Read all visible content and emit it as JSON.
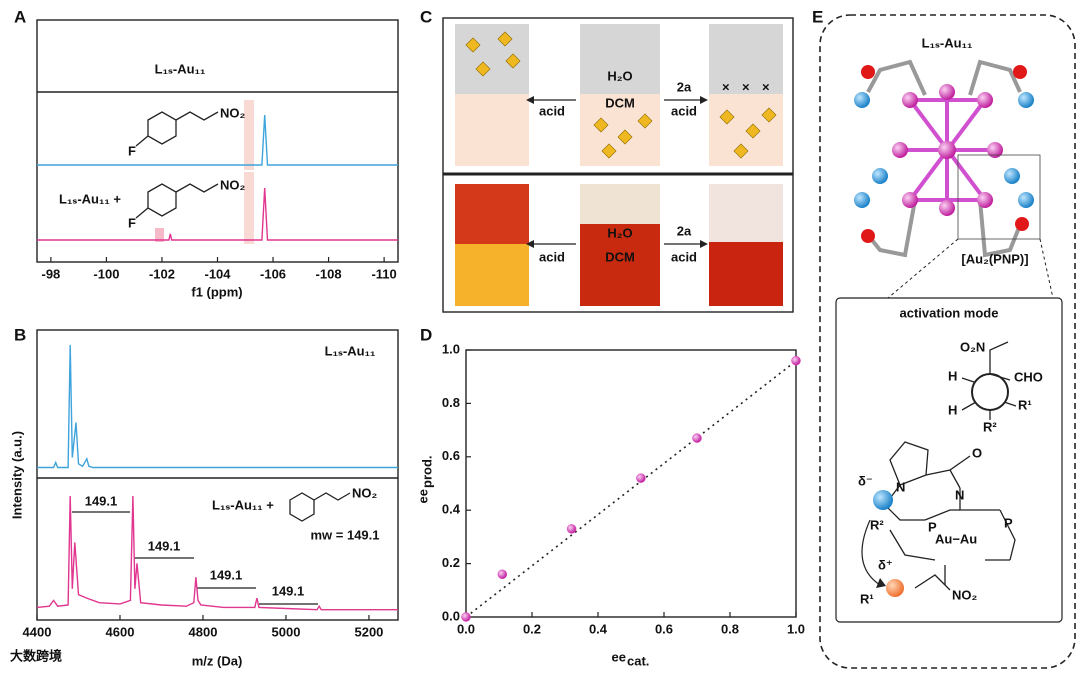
{
  "panel_labels": [
    "A",
    "B",
    "C",
    "D",
    "E"
  ],
  "chart_data": [
    {
      "type": "line",
      "xlabel": "f1 (ppm)",
      "xlim": [
        -97.5,
        -110.5
      ],
      "xticks": [
        -98,
        -100,
        -102,
        -104,
        -106,
        -108,
        -110
      ],
      "annotations": [
        "L₁ₛ-Au₁₁",
        "L₁ₛ-Au₁₁ +"
      ],
      "molecule_labels": [
        "NO₂",
        "F",
        "NO₂",
        "F"
      ],
      "series": [
        {
          "color": "#3fa4dc",
          "x": [
            -97.5,
            -105.6,
            -105.7,
            -105.8,
            -110.5
          ],
          "values": [
            0,
            0,
            1,
            0,
            0
          ]
        },
        {
          "color": "#e0368f",
          "x": [
            -97.5,
            -102.25,
            -102.3,
            -102.35,
            -105.6,
            -105.7,
            -105.8,
            -110.5
          ],
          "values": [
            0,
            0,
            0.12,
            0,
            0,
            1,
            0,
            0
          ]
        }
      ]
    },
    {
      "type": "line",
      "xlabel": "m/z (Da)",
      "ylabel": "Intensity (a.u.)",
      "xlim": [
        4400,
        5270
      ],
      "xticks": [
        4400,
        4600,
        4800,
        5000,
        5200
      ],
      "annotations": [
        "L₁ₛ-Au₁₁",
        "L₁ₛ-Au₁₁ +",
        "NO₂",
        "mw = 149.1"
      ],
      "spacing_labels": [
        "149.1",
        "149.1",
        "149.1",
        "149.1"
      ],
      "series": [
        {
          "color": "#3fa4dc",
          "x": [
            4400,
            4440,
            4445,
            4450,
            4475,
            4480,
            4485,
            4494,
            4500,
            4510,
            4520,
            4525,
            4535,
            5270
          ],
          "values": [
            0.02,
            0.02,
            0.06,
            0.02,
            0.02,
            1,
            0.1,
            0.38,
            0.05,
            0.03,
            0.09,
            0.03,
            0.02,
            0.02
          ]
        },
        {
          "color": "#e0368f",
          "x": [
            4400,
            4430,
            4440,
            4450,
            4475,
            4480,
            4485,
            4491,
            4500,
            4520,
            4550,
            4600,
            4625,
            4631,
            4636,
            4641,
            4650,
            4700,
            4760,
            4778,
            4783,
            4788,
            4795,
            4850,
            4925,
            4930,
            4935,
            5000,
            5075,
            5080,
            5085,
            5270
          ],
          "values": [
            0.04,
            0.05,
            0.1,
            0.05,
            0.06,
            1,
            0.2,
            0.6,
            0.15,
            0.12,
            0.08,
            0.07,
            0.1,
            1,
            0.2,
            0.42,
            0.08,
            0.06,
            0.05,
            0.08,
            0.3,
            0.1,
            0.06,
            0.04,
            0.04,
            0.12,
            0.04,
            0.03,
            0.02,
            0.05,
            0.02,
            0.02
          ]
        }
      ]
    },
    {
      "type": "scatter",
      "xlabel": "ee",
      "xlabel_sub": "cat.",
      "ylabel": "ee",
      "ylabel_sub": "prod.",
      "color": "#e040c0",
      "x": [
        0,
        0.11,
        0.32,
        0.53,
        0.7,
        1.0
      ],
      "values": [
        0,
        0.16,
        0.33,
        0.52,
        0.67,
        0.96
      ],
      "xlim": [
        0,
        1
      ],
      "ylim": [
        0,
        1
      ],
      "xticks": [
        {
          "value": 0,
          "label": "0.0"
        },
        0.2,
        0.4,
        0.6,
        0.8,
        {
          "value": 1,
          "label": "1.0"
        }
      ],
      "yticks": [
        {
          "value": 0,
          "label": "0.0"
        },
        0.2,
        0.4,
        0.6,
        0.8,
        {
          "value": 1,
          "label": "1.0"
        }
      ]
    }
  ],
  "panel_c": {
    "top": {
      "water": "H₂O",
      "organic": "DCM",
      "left_arrow": "acid",
      "right_arrow_top": "2a",
      "right_arrow_bottom": "acid"
    },
    "bottom": {
      "water": "H₂O",
      "organic": "DCM",
      "left_arrow": "acid",
      "right_arrow_top": "2a",
      "right_arrow_bottom": "acid"
    }
  },
  "panel_e": {
    "title": "L₁ₛ-Au₁₁",
    "motif": "[Au₂(PNP)]",
    "activation_title": "activation mode",
    "mechanism_labels": [
      "O₂N",
      "CHO",
      "H",
      "H",
      "R¹",
      "R²",
      "N",
      "O",
      "N",
      "δ⁻",
      "R²",
      "P",
      "Au−Au",
      "P",
      "δ⁺",
      "R¹",
      "NO₂"
    ]
  },
  "watermark": "大数跨境"
}
